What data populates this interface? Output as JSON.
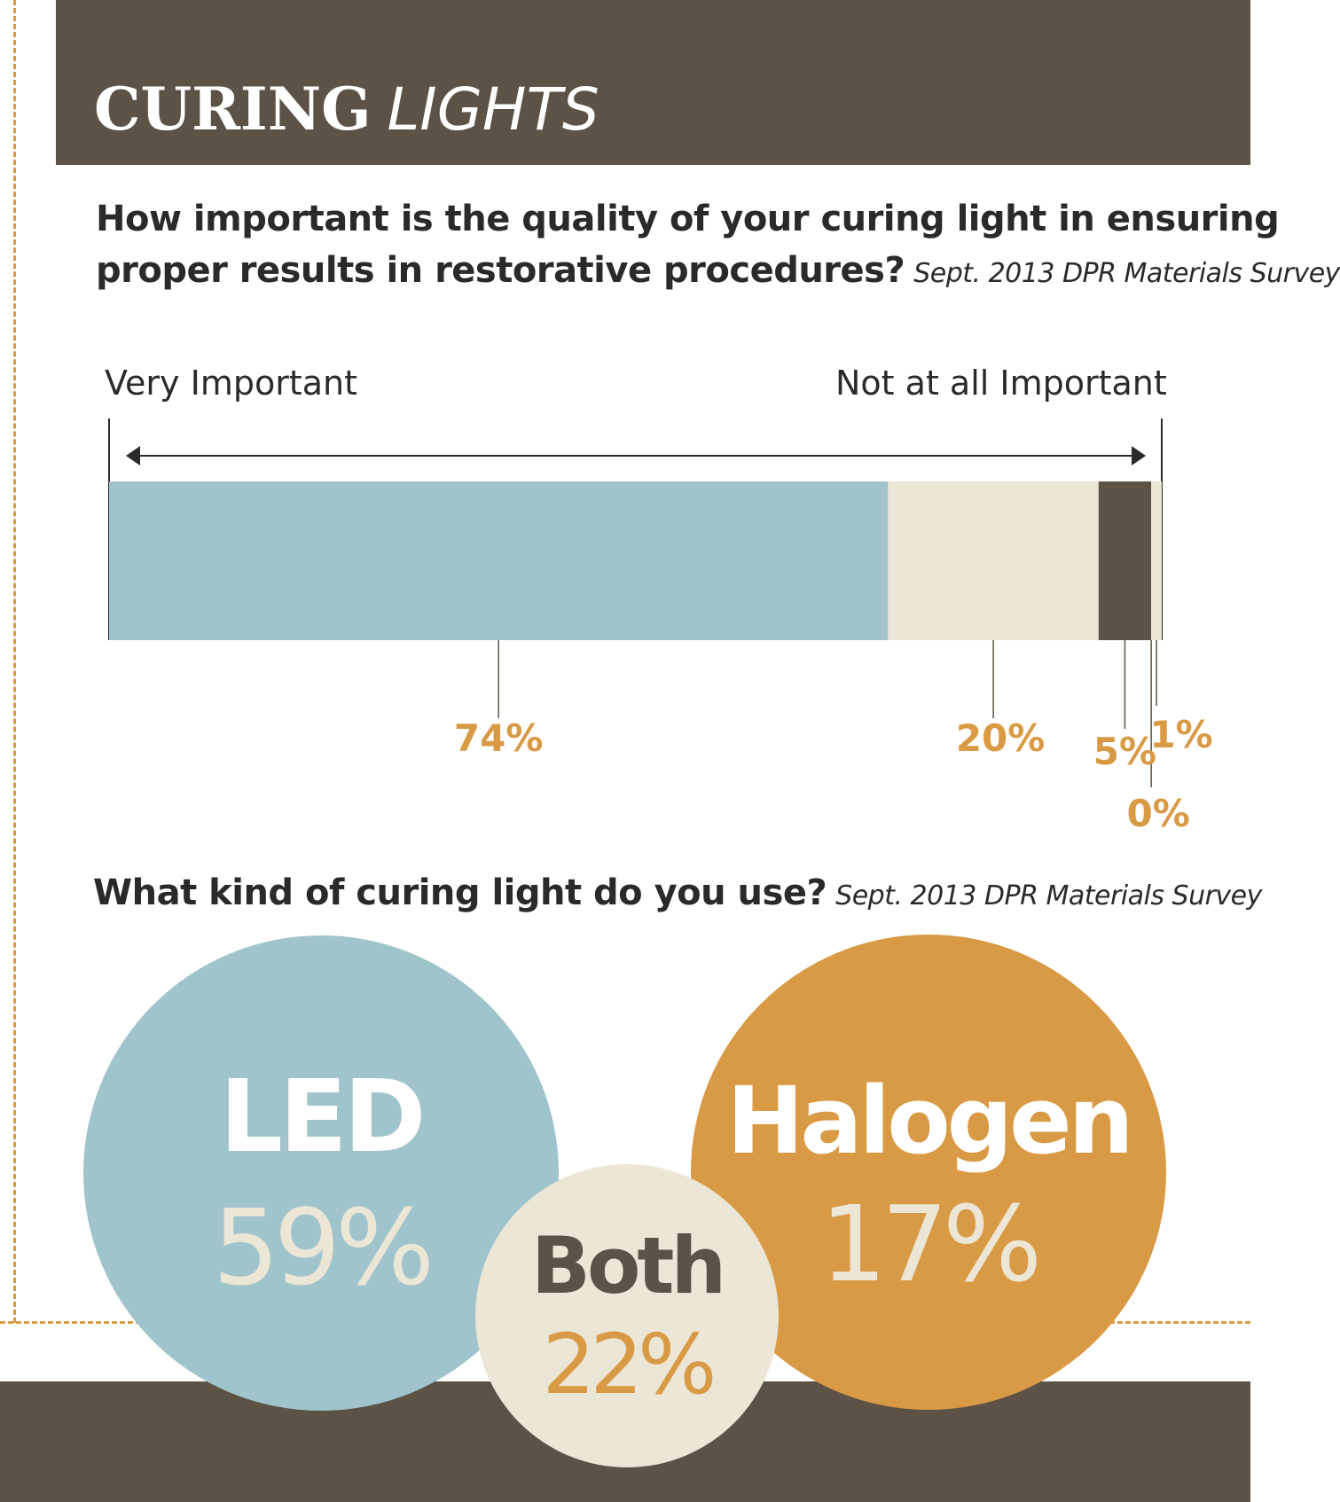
{
  "header": {
    "title_bold": "CURING",
    "title_light": "LIGHTS"
  },
  "colors": {
    "brown": "#5c5246",
    "blue": "#a0c4cc",
    "cream": "#ece6d6",
    "orange": "#d99a45",
    "white": "#ffffff"
  },
  "survey1": {
    "question_line1": "How important is the quality of your curing light in ensuring",
    "question_line2": "proper results in restorative procedures?",
    "source": "Sept. 2013 DPR Materials Survey",
    "scale_left": "Very Important",
    "scale_right": "Not at all Important"
  },
  "survey2": {
    "question": "What kind of curing light do you use?",
    "source": "Sept. 2013 DPR Materials Survey"
  },
  "chart_data": [
    {
      "type": "bar",
      "orientation": "horizontal-stacked",
      "categories": [
        "Very Important",
        "",
        "",
        "",
        "Not at all Important"
      ],
      "values": [
        74,
        20,
        5,
        0,
        1
      ],
      "labels": [
        "74%",
        "20%",
        "5%",
        "0%",
        "1%"
      ],
      "colors": [
        "#a0c4cc",
        "#ece6d6",
        "#5c5246",
        "#ece6d6",
        "#ece6d6"
      ]
    },
    {
      "type": "bubble",
      "items": [
        {
          "name": "LED",
          "value": 59,
          "label": "59%",
          "color": "#a0c4cc",
          "text_color": "#ffffff",
          "value_color": "#ece6d6"
        },
        {
          "name": "Both",
          "value": 22,
          "label": "22%",
          "color": "#ece6d6",
          "text_color": "#5c5246",
          "value_color": "#d99a45"
        },
        {
          "name": "Halogen",
          "value": 17,
          "label": "17%",
          "color": "#d99a45",
          "text_color": "#ffffff",
          "value_color": "#ece6d6"
        }
      ]
    }
  ]
}
